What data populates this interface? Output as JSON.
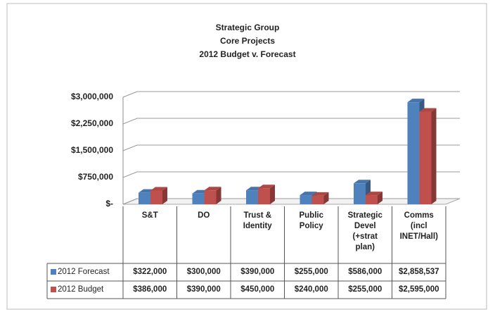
{
  "chart_data": {
    "type": "bar3d",
    "title": [
      "Strategic Group",
      "Core Projects",
      "2012 Budget v. Forecast"
    ],
    "categories": [
      "S&T",
      "DO",
      "Trust & Identity",
      "Public Policy",
      "Strategic Devel (+strat plan)",
      "Comms (incl INET/Hall)"
    ],
    "series": [
      {
        "name": "2012 Forecast",
        "color": "#4f81bd",
        "values": [
          322000,
          300000,
          390000,
          255000,
          586000,
          2858537
        ],
        "value_labels": [
          "$322,000",
          "$300,000",
          "$390,000",
          "$255,000",
          "$586,000",
          "$2,858,537"
        ]
      },
      {
        "name": "2012 Budget",
        "color": "#c0504d",
        "values": [
          386000,
          390000,
          450000,
          240000,
          255000,
          2595000
        ],
        "value_labels": [
          "$386,000",
          "$390,000",
          "$450,000",
          "$240,000",
          "$255,000",
          "$2,595,000"
        ]
      }
    ],
    "ylim": [
      0,
      3000000
    ],
    "yticks": [
      {
        "value": 0,
        "label": "$-"
      },
      {
        "value": 750000,
        "label": "$750,000"
      },
      {
        "value": 1500000,
        "label": "$1,500,000"
      },
      {
        "value": 2250000,
        "label": "$2,250,000"
      },
      {
        "value": 3000000,
        "label": "$3,000,000"
      }
    ],
    "grid": true
  }
}
